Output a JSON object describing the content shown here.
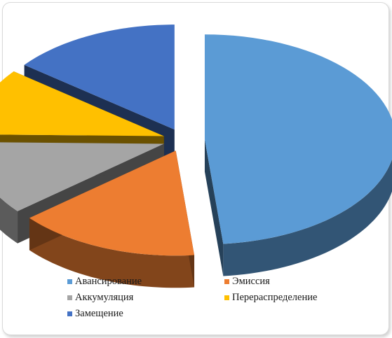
{
  "chart_data": {
    "type": "pie",
    "style": "3d-exploded",
    "title": "",
    "legend_position": "bottom",
    "slices": [
      {
        "label": "Авансирование",
        "value": 47,
        "color": "#5b9bd5"
      },
      {
        "label": "Эмиссия",
        "value": 15,
        "color": "#ed7d31"
      },
      {
        "label": "Аккумуляция",
        "value": 11,
        "color": "#a5a5a5"
      },
      {
        "label": "Перераспределение",
        "value": 10,
        "color": "#ffc000"
      },
      {
        "label": "Замещение",
        "value": 14,
        "color": "#4472c4"
      }
    ]
  }
}
